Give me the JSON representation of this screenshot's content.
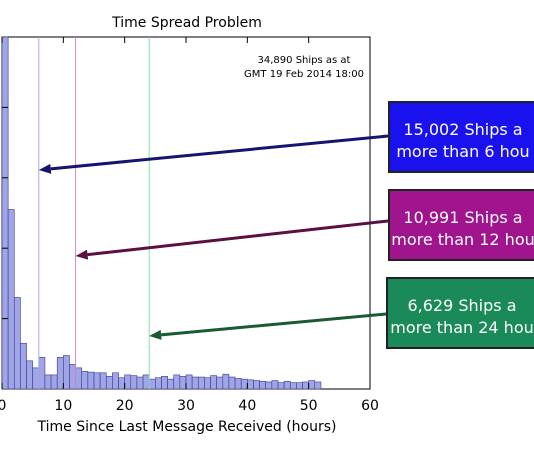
{
  "chart_data": {
    "type": "bar",
    "title": "Time Spread Problem",
    "xlabel": "Time Since Last Message Received (hours)",
    "ylabel": "",
    "xlim": [
      0,
      60
    ],
    "x_ticks": [
      "0",
      "10",
      "20",
      "30",
      "40",
      "50",
      "60"
    ],
    "bin_width_hours": 1,
    "bins_start": [
      0,
      1,
      2,
      3,
      4,
      5,
      6,
      7,
      8,
      9,
      10,
      11,
      12,
      13,
      14,
      15,
      16,
      17,
      18,
      19,
      20,
      21,
      22,
      23,
      24,
      25,
      26,
      27,
      28,
      29,
      30,
      31,
      32,
      33,
      34,
      35,
      36,
      37,
      38,
      39,
      40,
      41,
      42,
      43,
      44,
      45,
      46,
      47,
      48,
      49,
      50,
      51
    ],
    "relative_counts": [
      1.0,
      0.51,
      0.26,
      0.13,
      0.08,
      0.06,
      0.09,
      0.04,
      0.04,
      0.09,
      0.095,
      0.07,
      0.06,
      0.05,
      0.048,
      0.046,
      0.046,
      0.036,
      0.046,
      0.032,
      0.04,
      0.038,
      0.034,
      0.04,
      0.028,
      0.032,
      0.036,
      0.028,
      0.04,
      0.036,
      0.04,
      0.034,
      0.034,
      0.032,
      0.038,
      0.034,
      0.042,
      0.034,
      0.03,
      0.028,
      0.026,
      0.024,
      0.022,
      0.02,
      0.024,
      0.018,
      0.022,
      0.018,
      0.018,
      0.02,
      0.024,
      0.02
    ],
    "bar_color": "#9fa5e6",
    "annotation": [
      "34,890 Ships as at",
      "GMT 19 Feb 2014 18:00"
    ],
    "threshold_lines": [
      {
        "x": 6,
        "color": "#a6a6ee"
      },
      {
        "x": 12,
        "color": "#cc88cc"
      },
      {
        "x": 24,
        "color": "#88ddaa"
      }
    ]
  },
  "callouts": [
    {
      "line1": "15,002 Ships a",
      "line2": "more than 6 hou",
      "fill": "#1a12ee",
      "arrow_color": "#151570",
      "target_hours": 6
    },
    {
      "line1": "10,991 Ships a",
      "line2": "more than 12 hou",
      "fill": "#a0158e",
      "arrow_color": "#5b1040",
      "target_hours": 12
    },
    {
      "line1": "6,629 Ships a",
      "line2": "more than 24 hou",
      "fill": "#1a8a58",
      "arrow_color": "#1a5a30",
      "target_hours": 24
    }
  ]
}
